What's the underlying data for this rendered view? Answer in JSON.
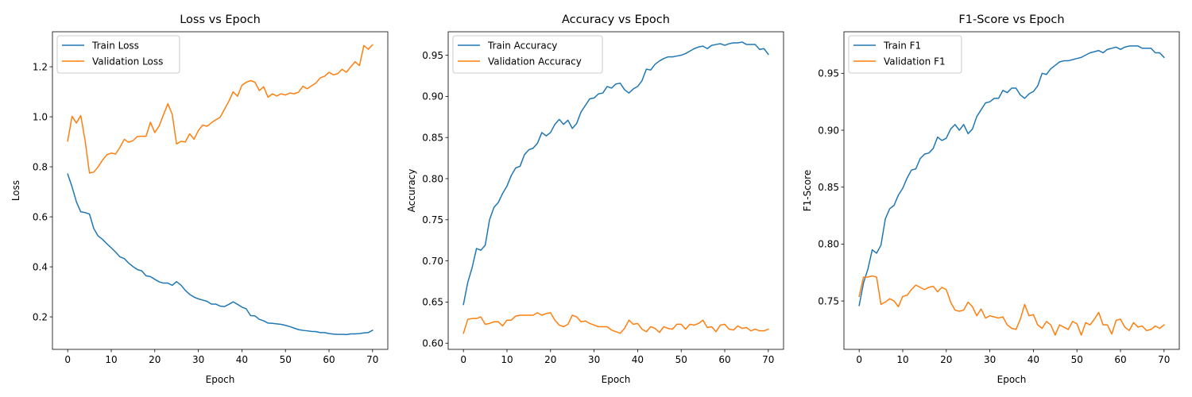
{
  "chart_data": [
    {
      "type": "line",
      "title": "Loss vs Epoch",
      "xlabel": "Epoch",
      "ylabel": "Loss",
      "xlim": [
        -3.5,
        73.5
      ],
      "ylim": [
        0.07,
        1.34
      ],
      "xticks": [
        0,
        10,
        20,
        30,
        40,
        50,
        60,
        70
      ],
      "yticks": [
        0.2,
        0.4,
        0.6,
        0.8,
        1.0,
        1.2
      ],
      "ytick_labels": [
        "0.2",
        "0.4",
        "0.6",
        "0.8",
        "1.0",
        "1.2"
      ],
      "legend": "top-left",
      "series": [
        {
          "name": "Train Loss",
          "color": "#1f77b4",
          "values": [
            0.771,
            0.72,
            0.66,
            0.62,
            0.617,
            0.611,
            0.553,
            0.523,
            0.51,
            0.492,
            0.476,
            0.459,
            0.44,
            0.433,
            0.415,
            0.401,
            0.389,
            0.384,
            0.364,
            0.361,
            0.35,
            0.34,
            0.335,
            0.335,
            0.326,
            0.341,
            0.327,
            0.306,
            0.29,
            0.279,
            0.272,
            0.267,
            0.262,
            0.251,
            0.251,
            0.243,
            0.241,
            0.25,
            0.26,
            0.25,
            0.239,
            0.232,
            0.205,
            0.204,
            0.19,
            0.184,
            0.175,
            0.174,
            0.172,
            0.17,
            0.166,
            0.161,
            0.155,
            0.149,
            0.146,
            0.144,
            0.142,
            0.141,
            0.137,
            0.137,
            0.133,
            0.131,
            0.13,
            0.13,
            0.129,
            0.132,
            0.132,
            0.133,
            0.136,
            0.137,
            0.146
          ]
        },
        {
          "name": "Validation Loss",
          "color": "#ff7f0e",
          "values": [
            0.903,
            1.002,
            0.975,
            1.005,
            0.905,
            0.775,
            0.779,
            0.8,
            0.827,
            0.848,
            0.855,
            0.851,
            0.878,
            0.91,
            0.898,
            0.905,
            0.921,
            0.922,
            0.922,
            0.978,
            0.937,
            0.963,
            1.008,
            1.052,
            1.01,
            0.891,
            0.902,
            0.899,
            0.932,
            0.91,
            0.945,
            0.967,
            0.962,
            0.976,
            0.988,
            0.998,
            1.03,
            1.062,
            1.1,
            1.082,
            1.126,
            1.138,
            1.145,
            1.138,
            1.105,
            1.12,
            1.078,
            1.092,
            1.083,
            1.092,
            1.087,
            1.095,
            1.092,
            1.098,
            1.122,
            1.112,
            1.124,
            1.135,
            1.156,
            1.162,
            1.178,
            1.168,
            1.172,
            1.19,
            1.178,
            1.2,
            1.22,
            1.205,
            1.285,
            1.27,
            1.288
          ]
        }
      ]
    },
    {
      "type": "line",
      "title": "Accuracy vs Epoch",
      "xlabel": "Epoch",
      "ylabel": "Accuracy",
      "xlim": [
        -3.5,
        73.5
      ],
      "ylim": [
        0.5925,
        0.9785
      ],
      "xticks": [
        0,
        10,
        20,
        30,
        40,
        50,
        60,
        70
      ],
      "yticks": [
        0.6,
        0.65,
        0.7,
        0.75,
        0.8,
        0.85,
        0.9,
        0.95
      ],
      "ytick_labels": [
        "0.60",
        "0.65",
        "0.70",
        "0.75",
        "0.80",
        "0.85",
        "0.90",
        "0.95"
      ],
      "legend": "top-left",
      "series": [
        {
          "name": "Train Accuracy",
          "color": "#1f77b4",
          "values": [
            0.647,
            0.674,
            0.692,
            0.715,
            0.713,
            0.719,
            0.75,
            0.765,
            0.771,
            0.782,
            0.791,
            0.804,
            0.813,
            0.815,
            0.829,
            0.835,
            0.837,
            0.843,
            0.856,
            0.852,
            0.856,
            0.866,
            0.872,
            0.866,
            0.871,
            0.861,
            0.867,
            0.881,
            0.889,
            0.897,
            0.898,
            0.903,
            0.904,
            0.912,
            0.91,
            0.915,
            0.916,
            0.908,
            0.904,
            0.909,
            0.912,
            0.919,
            0.933,
            0.932,
            0.939,
            0.943,
            0.946,
            0.948,
            0.948,
            0.949,
            0.95,
            0.952,
            0.955,
            0.958,
            0.96,
            0.961,
            0.958,
            0.962,
            0.963,
            0.964,
            0.962,
            0.964,
            0.965,
            0.965,
            0.966,
            0.963,
            0.963,
            0.963,
            0.957,
            0.958,
            0.951
          ]
        },
        {
          "name": "Validation Accuracy",
          "color": "#ff7f0e",
          "values": [
            0.612,
            0.629,
            0.63,
            0.63,
            0.632,
            0.623,
            0.624,
            0.626,
            0.626,
            0.621,
            0.628,
            0.628,
            0.633,
            0.634,
            0.634,
            0.634,
            0.634,
            0.637,
            0.634,
            0.636,
            0.637,
            0.628,
            0.622,
            0.62,
            0.623,
            0.634,
            0.632,
            0.626,
            0.627,
            0.624,
            0.622,
            0.62,
            0.62,
            0.62,
            0.616,
            0.614,
            0.612,
            0.618,
            0.628,
            0.623,
            0.624,
            0.617,
            0.614,
            0.62,
            0.618,
            0.613,
            0.62,
            0.618,
            0.617,
            0.623,
            0.623,
            0.617,
            0.623,
            0.622,
            0.624,
            0.628,
            0.619,
            0.62,
            0.614,
            0.622,
            0.623,
            0.617,
            0.616,
            0.621,
            0.618,
            0.619,
            0.615,
            0.617,
            0.615,
            0.615,
            0.617
          ]
        }
      ]
    },
    {
      "type": "line",
      "title": "F1-Score vs Epoch",
      "xlabel": "Epoch",
      "ylabel": "F1-Score",
      "xlim": [
        -3.5,
        73.5
      ],
      "ylim": [
        0.7075,
        0.9865
      ],
      "xticks": [
        0,
        10,
        20,
        30,
        40,
        50,
        60,
        70
      ],
      "yticks": [
        0.75,
        0.8,
        0.85,
        0.9,
        0.95
      ],
      "ytick_labels": [
        "0.75",
        "0.80",
        "0.85",
        "0.90",
        "0.95"
      ],
      "legend": "top-left",
      "series": [
        {
          "name": "Train F1",
          "color": "#1f77b4",
          "values": [
            0.746,
            0.766,
            0.778,
            0.795,
            0.792,
            0.799,
            0.822,
            0.831,
            0.834,
            0.843,
            0.849,
            0.858,
            0.865,
            0.866,
            0.875,
            0.879,
            0.88,
            0.884,
            0.894,
            0.891,
            0.893,
            0.901,
            0.905,
            0.9,
            0.905,
            0.897,
            0.901,
            0.912,
            0.918,
            0.924,
            0.925,
            0.928,
            0.928,
            0.935,
            0.933,
            0.937,
            0.937,
            0.931,
            0.928,
            0.932,
            0.934,
            0.939,
            0.95,
            0.949,
            0.954,
            0.957,
            0.96,
            0.961,
            0.961,
            0.962,
            0.963,
            0.964,
            0.966,
            0.968,
            0.969,
            0.97,
            0.968,
            0.971,
            0.972,
            0.973,
            0.971,
            0.973,
            0.974,
            0.974,
            0.974,
            0.972,
            0.972,
            0.972,
            0.968,
            0.968,
            0.964
          ]
        },
        {
          "name": "Validation F1",
          "color": "#ff7f0e",
          "values": [
            0.754,
            0.771,
            0.771,
            0.772,
            0.771,
            0.747,
            0.749,
            0.752,
            0.75,
            0.745,
            0.754,
            0.755,
            0.76,
            0.764,
            0.762,
            0.76,
            0.762,
            0.763,
            0.758,
            0.762,
            0.76,
            0.749,
            0.742,
            0.741,
            0.742,
            0.749,
            0.745,
            0.737,
            0.743,
            0.735,
            0.737,
            0.736,
            0.735,
            0.736,
            0.729,
            0.726,
            0.725,
            0.734,
            0.747,
            0.737,
            0.738,
            0.729,
            0.726,
            0.732,
            0.729,
            0.72,
            0.729,
            0.727,
            0.725,
            0.732,
            0.73,
            0.72,
            0.731,
            0.729,
            0.734,
            0.74,
            0.729,
            0.729,
            0.721,
            0.733,
            0.734,
            0.727,
            0.724,
            0.731,
            0.727,
            0.728,
            0.724,
            0.725,
            0.728,
            0.726,
            0.729
          ]
        }
      ]
    }
  ]
}
